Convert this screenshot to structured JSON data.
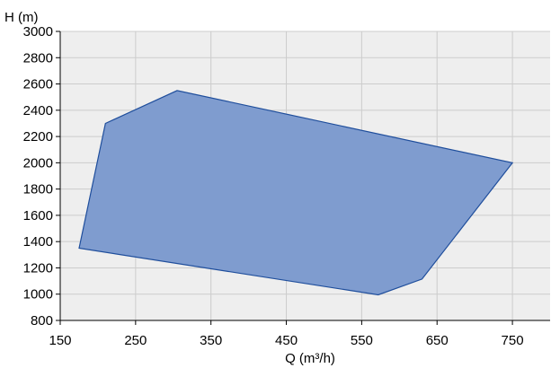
{
  "chart_data": {
    "type": "area",
    "title": "",
    "xlabel": "Q (m³/h)",
    "ylabel": "H (m)",
    "xlim": [
      150,
      800
    ],
    "ylim": [
      800,
      3000
    ],
    "x_ticks": [
      150,
      250,
      350,
      450,
      550,
      650,
      750
    ],
    "y_ticks": [
      800,
      1000,
      1200,
      1400,
      1600,
      1800,
      2000,
      2200,
      2400,
      2600,
      2800,
      3000
    ],
    "grid": true,
    "legend": "none",
    "colors": {
      "fill": "#7f9ccf",
      "stroke": "#1f4e9c",
      "plot_background": "#eeeeee",
      "grid": "#cccccc",
      "axis": "#000000"
    },
    "series": [
      {
        "points": [
          {
            "x": 175,
            "y": 1350
          },
          {
            "x": 210,
            "y": 2300
          },
          {
            "x": 305,
            "y": 2550
          },
          {
            "x": 750,
            "y": 2000
          },
          {
            "x": 630,
            "y": 1115
          },
          {
            "x": 572,
            "y": 995
          },
          {
            "x": 175,
            "y": 1350
          }
        ]
      }
    ]
  }
}
